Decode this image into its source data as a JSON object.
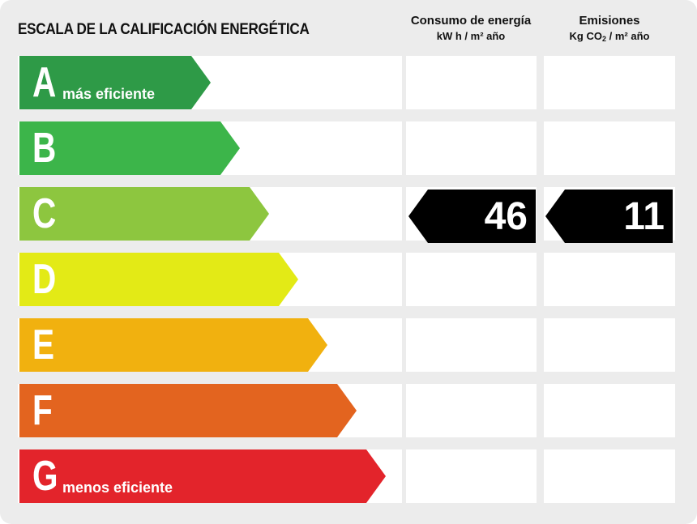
{
  "title": "ESCALA DE LA CALIFICACIÓN ENERGÉTICA",
  "columns": {
    "energy": {
      "title": "Consumo de energía",
      "unit": "kW h / m² año"
    },
    "emissions": {
      "title": "Emisiones",
      "unit_prefix": "Kg CO",
      "unit_subscript": "2",
      "unit_suffix": " / m² año"
    }
  },
  "classes": [
    {
      "letter": "A",
      "sublabel": "más eficiente",
      "color": "#2e9a47"
    },
    {
      "letter": "B",
      "sublabel": "",
      "color": "#3cb54a"
    },
    {
      "letter": "C",
      "sublabel": "",
      "color": "#8dc63f"
    },
    {
      "letter": "D",
      "sublabel": "",
      "color": "#e3ea16"
    },
    {
      "letter": "E",
      "sublabel": "",
      "color": "#f1b10f"
    },
    {
      "letter": "F",
      "sublabel": "",
      "color": "#e3641f"
    },
    {
      "letter": "G",
      "sublabel": "menos eficiente",
      "color": "#e3242b"
    }
  ],
  "rating": {
    "class": "C",
    "energy_value": "46",
    "emissions_value": "11",
    "marker_color": "#000000"
  }
}
